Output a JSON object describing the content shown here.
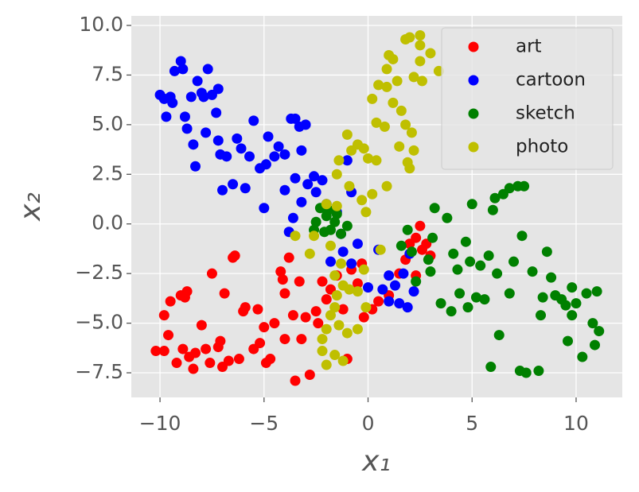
{
  "chart_data": {
    "type": "scatter",
    "xlabel": "x₁",
    "ylabel": "x₂",
    "xlim": [
      -11.38,
      12.22
    ],
    "ylim": [
      -8.74,
      10.48
    ],
    "xticks": [
      {
        "value": -10,
        "label": "−10"
      },
      {
        "value": -5,
        "label": "−5"
      },
      0,
      5,
      10
    ],
    "yticks": [
      {
        "value": 10,
        "label": "10.0"
      },
      7.5,
      {
        "value": 5,
        "label": "5.0"
      },
      2.5,
      {
        "value": 0,
        "label": "0.0"
      },
      {
        "value": -2.5,
        "label": "−2.5"
      },
      {
        "value": -5,
        "label": "−5.0"
      },
      {
        "value": -7.5,
        "label": "−7.5"
      }
    ],
    "grid": true,
    "legend": "upper right",
    "series": [
      {
        "name": "art",
        "color": "#ff0000",
        "x": [
          -10.2,
          -9.8,
          -9.6,
          -9.8,
          -9.5,
          -9.2,
          -9.0,
          -8.8,
          -8.7,
          -8.9,
          -8.6,
          -8.4,
          -8.3,
          -8.0,
          -7.8,
          -7.6,
          -7.5,
          -7.2,
          -7.1,
          -7.0,
          -6.9,
          -6.7,
          -6.5,
          -6.4,
          -6.2,
          -6.0,
          -5.9,
          -5.5,
          -5.3,
          -5.2,
          -5.0,
          -4.9,
          -4.7,
          -4.5,
          -4.2,
          -4.1,
          -4.0,
          -4.0,
          -3.8,
          -3.6,
          -3.5,
          -3.3,
          -3.2,
          -3.0,
          -2.8,
          -2.5,
          -2.4,
          -2.2,
          -2.0,
          -1.8,
          -1.5,
          -1.2,
          -1.0,
          -0.8,
          -0.5,
          -0.3,
          0.2,
          0.5,
          1.0,
          1.5,
          2.0,
          2.3,
          2.5,
          2.6,
          2.8,
          2.3,
          3.0,
          1.8,
          -0.2
        ],
        "values": [
          -6.4,
          -6.4,
          -5.6,
          -4.6,
          -3.9,
          -7.0,
          -3.6,
          -3.7,
          -3.4,
          -6.3,
          -6.7,
          -7.3,
          -6.5,
          -5.1,
          -6.3,
          -7.0,
          -2.5,
          -6.2,
          -5.9,
          -7.2,
          -3.5,
          -6.9,
          -1.7,
          -1.6,
          -6.8,
          -4.4,
          -4.2,
          -6.3,
          -4.3,
          -6.0,
          -5.2,
          -7.0,
          -6.8,
          -5.0,
          -2.4,
          -2.8,
          -3.5,
          -5.8,
          -1.7,
          -4.6,
          -7.9,
          -2.9,
          -5.8,
          -4.7,
          -7.6,
          -4.4,
          -5.0,
          -2.9,
          -3.8,
          -3.3,
          -2.6,
          -4.3,
          -6.8,
          -2.3,
          -3.0,
          -2.0,
          -4.3,
          -3.9,
          -3.6,
          -2.5,
          -1.0,
          -0.7,
          -0.1,
          -1.3,
          -1.0,
          -2.6,
          -1.6,
          -1.8,
          -4.7
        ]
      },
      {
        "name": "cartoon",
        "color": "#0000ff",
        "x": [
          -10.0,
          -9.8,
          -9.5,
          -9.4,
          -9.7,
          -9.3,
          -9.0,
          -8.9,
          -8.8,
          -8.7,
          -8.5,
          -8.3,
          -8.4,
          -8.2,
          -8.0,
          -7.9,
          -7.8,
          -7.7,
          -7.5,
          -7.2,
          -7.3,
          -7.1,
          -7.0,
          -7.2,
          -6.8,
          -6.5,
          -6.3,
          -6.1,
          -5.9,
          -5.7,
          -5.5,
          -5.2,
          -5.0,
          -4.9,
          -4.8,
          -4.5,
          -4.3,
          -4.0,
          -3.7,
          -3.5,
          -3.3,
          -3.2,
          -3.0,
          -2.9,
          -2.6,
          -2.5,
          -3.2,
          -3.5,
          -4.0,
          -3.8,
          -3.6,
          -2.0,
          -1.5,
          -1.0,
          -0.8,
          -0.5,
          -1.8,
          -1.2,
          -0.8,
          0.0,
          0.5,
          0.7,
          1.0,
          1.3,
          1.0,
          1.5,
          1.9,
          2.2,
          1.7,
          2.0,
          -2.2,
          -1.3
        ],
        "values": [
          6.5,
          6.3,
          6.4,
          6.1,
          5.4,
          7.7,
          8.2,
          7.8,
          5.4,
          4.8,
          6.4,
          2.9,
          4.0,
          7.2,
          6.6,
          6.4,
          4.6,
          7.8,
          6.5,
          6.8,
          5.6,
          3.5,
          1.7,
          4.2,
          3.4,
          2.0,
          4.3,
          3.8,
          1.8,
          3.4,
          5.2,
          2.8,
          0.8,
          3.0,
          4.4,
          3.4,
          3.9,
          3.5,
          5.3,
          5.3,
          4.9,
          3.7,
          5.0,
          2.0,
          2.4,
          1.6,
          1.1,
          2.3,
          1.7,
          -0.4,
          0.3,
          1.0,
          0.6,
          3.2,
          1.6,
          -1.0,
          -1.9,
          -1.4,
          -2.0,
          -3.2,
          -1.3,
          -3.3,
          -2.6,
          -3.1,
          -3.9,
          -4.0,
          -4.2,
          -3.4,
          -2.5,
          -1.5,
          2.2,
          -0.5
        ]
      },
      {
        "name": "sketch",
        "color": "#008000",
        "x": [
          -2.5,
          -2.3,
          -2.0,
          -1.8,
          -1.6,
          -1.3,
          -2.1,
          -1.9,
          -2.6,
          -1.0,
          -1.5,
          1.6,
          1.9,
          2.1,
          2.3,
          2.9,
          3.0,
          3.1,
          3.2,
          3.5,
          3.8,
          4.0,
          4.1,
          4.3,
          4.4,
          4.7,
          4.8,
          4.9,
          5.0,
          5.2,
          5.4,
          5.6,
          5.8,
          5.9,
          6.0,
          6.1,
          6.2,
          6.3,
          6.5,
          6.8,
          6.8,
          7.0,
          7.2,
          7.4,
          7.3,
          7.5,
          7.6,
          7.9,
          8.2,
          8.3,
          8.4,
          8.6,
          8.8,
          9.0,
          9.3,
          9.6,
          9.8,
          9.8,
          10.0,
          10.3,
          10.5,
          10.8,
          10.9,
          11.0,
          11.1,
          9.5
        ],
        "values": [
          0.1,
          0.8,
          0.4,
          -0.3,
          0.1,
          -0.5,
          -0.4,
          0.7,
          -0.3,
          -0.1,
          0.5,
          -1.1,
          -0.3,
          -1.4,
          -2.9,
          -1.8,
          -2.4,
          -0.7,
          0.8,
          -4.0,
          0.3,
          -4.4,
          -1.5,
          -2.3,
          -3.5,
          -0.9,
          -4.2,
          -1.9,
          1.0,
          -3.7,
          -2.1,
          -3.8,
          -1.6,
          -7.2,
          0.7,
          1.3,
          -2.5,
          -5.6,
          1.5,
          1.8,
          -3.5,
          -1.9,
          1.9,
          -0.6,
          -7.4,
          1.9,
          -7.5,
          -2.4,
          -7.4,
          -4.6,
          -3.7,
          -1.4,
          -2.7,
          -3.6,
          -3.8,
          -5.9,
          -4.6,
          -3.2,
          -4.0,
          -6.7,
          -3.5,
          -5.0,
          -6.1,
          -3.4,
          -5.4,
          -4.1
        ]
      },
      {
        "name": "photo",
        "color": "#bfbf00",
        "x": [
          2.0,
          1.8,
          2.5,
          2.5,
          2.5,
          3.0,
          3.4,
          1.0,
          0.9,
          1.2,
          0.5,
          0.9,
          1.4,
          2.2,
          2.6,
          0.2,
          0.4,
          0.8,
          1.2,
          1.6,
          1.8,
          2.1,
          1.5,
          2.2,
          1.9,
          2.0,
          0.0,
          0.4,
          -0.2,
          -0.5,
          -0.8,
          -1.0,
          -1.4,
          -1.5,
          -0.9,
          -0.3,
          -0.1,
          0.2,
          0.9,
          -1.5,
          -2.0,
          -2.6,
          -3.5,
          -2.8,
          -1.8,
          -1.3,
          -1.6,
          -1.2,
          -0.9,
          -0.5,
          -0.1,
          -1.5,
          -1.6,
          -1.8,
          -2.0,
          -1.4,
          -1.0,
          -0.5,
          -2.2,
          -1.6,
          -1.2,
          -2.0,
          -2.2,
          -0.2,
          0.6
        ],
        "values": [
          9.4,
          9.3,
          9.5,
          9.0,
          8.2,
          8.6,
          7.7,
          8.5,
          7.8,
          8.3,
          7.0,
          6.9,
          7.2,
          7.4,
          7.2,
          6.3,
          5.1,
          4.9,
          6.1,
          5.7,
          5.0,
          4.6,
          3.9,
          3.7,
          3.1,
          2.8,
          3.3,
          3.2,
          3.8,
          4.0,
          3.7,
          4.5,
          3.2,
          2.5,
          1.9,
          1.2,
          0.6,
          1.5,
          1.9,
          0.9,
          1.0,
          -0.6,
          -0.6,
          -1.5,
          -1.1,
          -2.0,
          -2.6,
          -3.1,
          -3.3,
          -3.4,
          -4.2,
          -3.6,
          -4.2,
          -4.6,
          -5.3,
          -5.1,
          -5.5,
          -5.3,
          -6.4,
          -6.6,
          -6.9,
          -7.1,
          -5.8,
          -2.3,
          -1.3
        ]
      }
    ]
  }
}
